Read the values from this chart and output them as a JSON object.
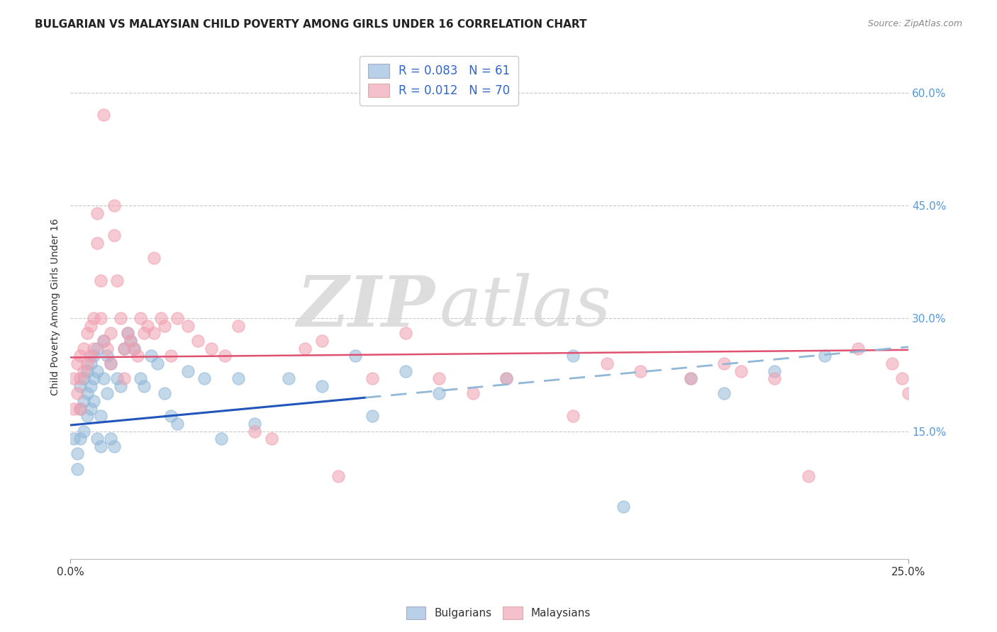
{
  "title": "BULGARIAN VS MALAYSIAN CHILD POVERTY AMONG GIRLS UNDER 16 CORRELATION CHART",
  "source": "Source: ZipAtlas.com",
  "ylabel": "Child Poverty Among Girls Under 16",
  "ytick_labels": [
    "15.0%",
    "30.0%",
    "45.0%",
    "60.0%"
  ],
  "ytick_values": [
    0.15,
    0.3,
    0.45,
    0.6
  ],
  "xlim": [
    0.0,
    0.25
  ],
  "ylim": [
    -0.02,
    0.65
  ],
  "bg_color": "#ffffff",
  "watermark_zip": "ZIP",
  "watermark_atlas": "atlas",
  "bulgarians_color": "#92b8d8",
  "malaysians_color": "#f0a0b0",
  "trend_bulgarian_solid_color": "#2255bb",
  "trend_bulgarian_dash_color": "#92b8d8",
  "trend_malaysian_color": "#e05070",
  "legend_blue_face": "#b8d0e8",
  "legend_pink_face": "#f4c0cc",
  "legend_label1": "R = 0.083   N = 61",
  "legend_label2": "R = 0.012   N = 70",
  "bottom_label1": "Bulgarians",
  "bottom_label2": "Malaysians",
  "bulgarians_x": [
    0.001,
    0.002,
    0.002,
    0.003,
    0.003,
    0.003,
    0.004,
    0.004,
    0.004,
    0.005,
    0.005,
    0.005,
    0.006,
    0.006,
    0.006,
    0.007,
    0.007,
    0.007,
    0.008,
    0.008,
    0.008,
    0.009,
    0.009,
    0.01,
    0.01,
    0.011,
    0.011,
    0.012,
    0.012,
    0.013,
    0.014,
    0.015,
    0.016,
    0.017,
    0.018,
    0.019,
    0.021,
    0.022,
    0.024,
    0.026,
    0.028,
    0.03,
    0.032,
    0.035,
    0.04,
    0.045,
    0.05,
    0.055,
    0.065,
    0.075,
    0.085,
    0.09,
    0.1,
    0.11,
    0.13,
    0.15,
    0.165,
    0.185,
    0.195,
    0.21,
    0.225
  ],
  "bulgarians_y": [
    0.14,
    0.12,
    0.1,
    0.21,
    0.18,
    0.14,
    0.22,
    0.19,
    0.15,
    0.23,
    0.2,
    0.17,
    0.24,
    0.21,
    0.18,
    0.25,
    0.22,
    0.19,
    0.26,
    0.23,
    0.14,
    0.17,
    0.13,
    0.27,
    0.22,
    0.25,
    0.2,
    0.24,
    0.14,
    0.13,
    0.22,
    0.21,
    0.26,
    0.28,
    0.27,
    0.26,
    0.22,
    0.21,
    0.25,
    0.24,
    0.2,
    0.17,
    0.16,
    0.23,
    0.22,
    0.14,
    0.22,
    0.16,
    0.22,
    0.21,
    0.25,
    0.17,
    0.23,
    0.2,
    0.22,
    0.25,
    0.05,
    0.22,
    0.2,
    0.23,
    0.25
  ],
  "malaysians_x": [
    0.001,
    0.001,
    0.002,
    0.002,
    0.003,
    0.003,
    0.003,
    0.004,
    0.004,
    0.005,
    0.005,
    0.006,
    0.006,
    0.007,
    0.007,
    0.008,
    0.008,
    0.009,
    0.009,
    0.01,
    0.011,
    0.012,
    0.012,
    0.013,
    0.013,
    0.014,
    0.015,
    0.016,
    0.016,
    0.017,
    0.018,
    0.019,
    0.02,
    0.021,
    0.022,
    0.023,
    0.025,
    0.027,
    0.028,
    0.03,
    0.032,
    0.035,
    0.038,
    0.042,
    0.046,
    0.05,
    0.055,
    0.06,
    0.07,
    0.075,
    0.08,
    0.09,
    0.1,
    0.11,
    0.12,
    0.13,
    0.15,
    0.16,
    0.17,
    0.185,
    0.195,
    0.2,
    0.21,
    0.22,
    0.235,
    0.245,
    0.248,
    0.25,
    0.01,
    0.025
  ],
  "malaysians_y": [
    0.22,
    0.18,
    0.24,
    0.2,
    0.25,
    0.22,
    0.18,
    0.26,
    0.23,
    0.28,
    0.24,
    0.29,
    0.25,
    0.3,
    0.26,
    0.44,
    0.4,
    0.35,
    0.3,
    0.27,
    0.26,
    0.28,
    0.24,
    0.45,
    0.41,
    0.35,
    0.3,
    0.26,
    0.22,
    0.28,
    0.27,
    0.26,
    0.25,
    0.3,
    0.28,
    0.29,
    0.28,
    0.3,
    0.29,
    0.25,
    0.3,
    0.29,
    0.27,
    0.26,
    0.25,
    0.29,
    0.15,
    0.14,
    0.26,
    0.27,
    0.09,
    0.22,
    0.28,
    0.22,
    0.2,
    0.22,
    0.17,
    0.24,
    0.23,
    0.22,
    0.24,
    0.23,
    0.22,
    0.09,
    0.26,
    0.24,
    0.22,
    0.2,
    0.57,
    0.38
  ],
  "trend_blue_x0": 0.0,
  "trend_blue_y0": 0.158,
  "trend_blue_x1_solid": 0.088,
  "trend_blue_y1_solid": 0.195,
  "trend_blue_x1_dash": 0.25,
  "trend_blue_y1_dash": 0.262,
  "trend_pink_x0": 0.0,
  "trend_pink_y0": 0.248,
  "trend_pink_x1": 0.25,
  "trend_pink_y1": 0.258
}
